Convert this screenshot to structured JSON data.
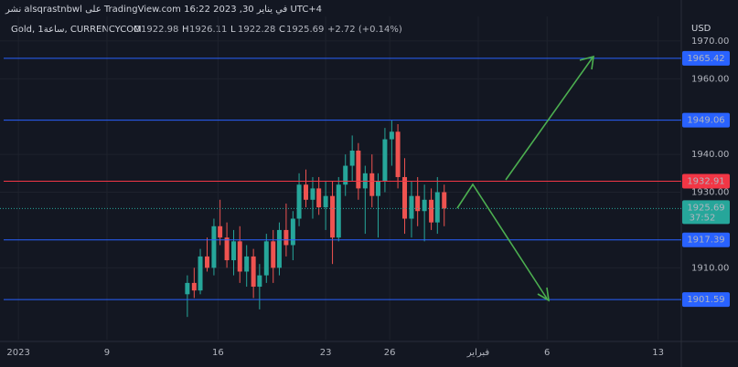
{
  "chart_data": {
    "type": "candlestick",
    "attribution": "نشر alsqrastnbwl على TradingView.com في يناير 30, 2023 16:22 UTC+4",
    "symbol": "Gold, 1ساعة, CURRENCYCOM",
    "ohlc": [
      {
        "label": "O",
        "value": 1922.98
      },
      {
        "label": "H",
        "value": 1926.11
      },
      {
        "label": "L",
        "value": 1922.28
      },
      {
        "label": "C",
        "value": 1925.69
      }
    ],
    "change": "+2.72 (+0.14%)",
    "currency": "USD",
    "up_color": "#26a69a",
    "down_color": "#ef5350",
    "ylim": [
      1891,
      1976.5
    ],
    "yticks": [
      {
        "value": 1970,
        "label": "1970.00"
      },
      {
        "value": 1960,
        "label": "1960.00"
      },
      {
        "value": 1940,
        "label": "1940.00"
      },
      {
        "value": 1930,
        "label": "1930.00"
      },
      {
        "value": 1910,
        "label": "1910.00"
      }
    ],
    "xlim": [
      0,
      100
    ],
    "xticks": [
      {
        "value": 2.7,
        "label": "2023"
      },
      {
        "value": 15.7,
        "label": "9"
      },
      {
        "value": 32,
        "label": "16"
      },
      {
        "value": 47.8,
        "label": "23"
      },
      {
        "value": 57.2,
        "label": "26"
      },
      {
        "value": 70.2,
        "label": "فبراير"
      },
      {
        "value": 80.3,
        "label": "6"
      },
      {
        "value": 96.6,
        "label": "13"
      }
    ],
    "grid": true,
    "levels": [
      {
        "value": 1965.42,
        "color": "#2962ff"
      },
      {
        "value": 1949.06,
        "color": "#2962ff"
      },
      {
        "value": 1932.91,
        "color": "#f23645"
      },
      {
        "value": 1917.39,
        "color": "#2962ff"
      },
      {
        "value": 1901.59,
        "color": "#2962ff"
      }
    ],
    "last_price": {
      "value": 1925.69,
      "countdown": "37:52",
      "color": "#26a69a"
    },
    "candles": [
      [
        27.5,
        1903,
        1908,
        1897,
        1906
      ],
      [
        28.5,
        1906,
        1910,
        1902,
        1904
      ],
      [
        29.4,
        1904,
        1915,
        1903,
        1913
      ],
      [
        30.4,
        1913,
        1918,
        1909,
        1910
      ],
      [
        31.4,
        1910,
        1923,
        1908,
        1921
      ],
      [
        32.3,
        1921,
        1928,
        1916,
        1918
      ],
      [
        33.3,
        1918,
        1922,
        1910,
        1912
      ],
      [
        34.3,
        1912,
        1920,
        1908,
        1917
      ],
      [
        35.2,
        1917,
        1921,
        1906,
        1909
      ],
      [
        36.2,
        1909,
        1916,
        1905,
        1913
      ],
      [
        37.2,
        1913,
        1915,
        1902,
        1905
      ],
      [
        38.1,
        1905,
        1911,
        1899,
        1908
      ],
      [
        39.1,
        1908,
        1919,
        1906,
        1917
      ],
      [
        40.1,
        1917,
        1920,
        1906,
        1910
      ],
      [
        41.0,
        1910,
        1922,
        1908,
        1920
      ],
      [
        42.0,
        1920,
        1927,
        1913,
        1916
      ],
      [
        43.0,
        1916,
        1925,
        1912,
        1923
      ],
      [
        43.9,
        1923,
        1935,
        1921,
        1932
      ],
      [
        44.9,
        1932,
        1936,
        1926,
        1928
      ],
      [
        45.9,
        1928,
        1934,
        1923,
        1931
      ],
      [
        46.8,
        1931,
        1934,
        1924,
        1926
      ],
      [
        47.8,
        1926,
        1933,
        1920,
        1929
      ],
      [
        48.8,
        1929,
        1933,
        1911,
        1918
      ],
      [
        49.7,
        1918,
        1934,
        1917,
        1932
      ],
      [
        50.7,
        1932,
        1940,
        1929,
        1937
      ],
      [
        51.7,
        1937,
        1945,
        1933,
        1941
      ],
      [
        52.6,
        1941,
        1943,
        1928,
        1931
      ],
      [
        53.6,
        1931,
        1937,
        1919,
        1935
      ],
      [
        54.6,
        1935,
        1940,
        1926,
        1929
      ],
      [
        55.5,
        1929,
        1935,
        1918,
        1933
      ],
      [
        56.5,
        1933,
        1947,
        1930,
        1944
      ],
      [
        57.5,
        1944,
        1949,
        1937,
        1946
      ],
      [
        58.4,
        1946,
        1948,
        1931,
        1934
      ],
      [
        59.4,
        1934,
        1939,
        1919,
        1923
      ],
      [
        60.4,
        1923,
        1933,
        1918,
        1929
      ],
      [
        61.3,
        1929,
        1934,
        1921,
        1925
      ],
      [
        62.3,
        1925,
        1932,
        1917,
        1928
      ],
      [
        63.3,
        1928,
        1931,
        1920,
        1922
      ],
      [
        64.2,
        1922,
        1934,
        1919,
        1930
      ],
      [
        65.2,
        1930,
        1932,
        1921,
        1925.69
      ]
    ]
  }
}
